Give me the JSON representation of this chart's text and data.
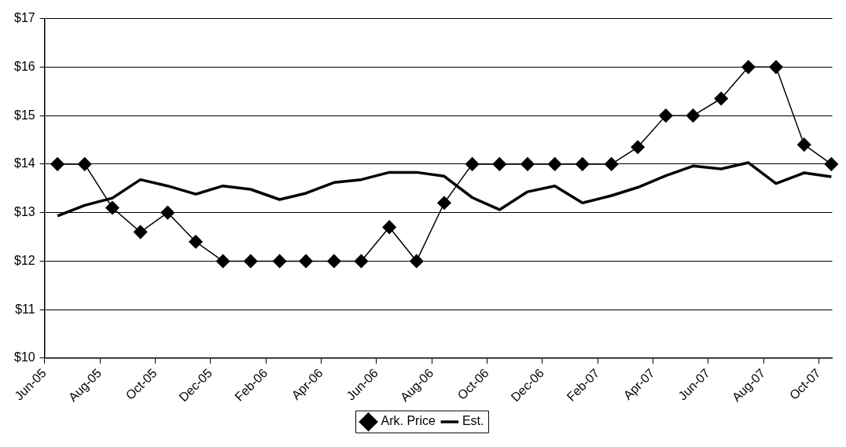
{
  "chart_data": {
    "type": "line",
    "xlim": [
      "2005-06",
      "2007-10-16"
    ],
    "xticks": [
      {
        "value": "2005-06",
        "label": "Jun-05"
      },
      {
        "value": "2005-08",
        "label": "Aug-05"
      },
      {
        "value": "2005-10",
        "label": "Oct-05"
      },
      {
        "value": "2005-12",
        "label": "Dec-05"
      },
      {
        "value": "2006-02",
        "label": "Feb-06"
      },
      {
        "value": "2006-04",
        "label": "Apr-06"
      },
      {
        "value": "2006-06",
        "label": "Jun-06"
      },
      {
        "value": "2006-08",
        "label": "Aug-06"
      },
      {
        "value": "2006-10",
        "label": "Oct-06"
      },
      {
        "value": "2006-12",
        "label": "Dec-06"
      },
      {
        "value": "2007-02",
        "label": "Feb-07"
      },
      {
        "value": "2007-04",
        "label": "Apr-07"
      },
      {
        "value": "2007-06",
        "label": "Jun-07"
      },
      {
        "value": "2007-08",
        "label": "Aug-07"
      },
      {
        "value": "2007-10",
        "label": "Oct-07"
      }
    ],
    "ylim": [
      10,
      17
    ],
    "yticks": [
      {
        "value": 10,
        "label": "$10"
      },
      {
        "value": 11,
        "label": "$11"
      },
      {
        "value": 12,
        "label": "$12"
      },
      {
        "value": 13,
        "label": "$13"
      },
      {
        "value": 14,
        "label": "$14"
      },
      {
        "value": 15,
        "label": "$15"
      },
      {
        "value": 16,
        "label": "$16"
      },
      {
        "value": 17,
        "label": "$17"
      }
    ],
    "x": [
      "2005-06-15",
      "2005-07-15",
      "2005-08-15",
      "2005-09-15",
      "2005-10-15",
      "2005-11-15",
      "2005-12-15",
      "2006-01-15",
      "2006-02-15",
      "2006-03-15",
      "2006-04-15",
      "2006-05-15",
      "2006-06-15",
      "2006-07-15",
      "2006-08-15",
      "2006-09-15",
      "2006-10-15",
      "2006-11-15",
      "2006-12-15",
      "2007-01-15",
      "2007-02-15",
      "2007-03-15",
      "2007-04-15",
      "2007-05-15",
      "2007-06-15",
      "2007-07-15",
      "2007-08-15",
      "2007-09-15",
      "2007-10-15"
    ],
    "series": [
      {
        "name": "Ark. Price",
        "color": "#000000",
        "marker": "diamond",
        "values": [
          14,
          14,
          13.1,
          12.6,
          13,
          12.4,
          12,
          12,
          12,
          12,
          12,
          12,
          12.7,
          12,
          13.2,
          14,
          14,
          14,
          14,
          14,
          14,
          14.35,
          15,
          15,
          15.35,
          16,
          16,
          14.4,
          14
        ]
      },
      {
        "name": "Est.",
        "color": "#000000",
        "marker": "none",
        "values": [
          12.93,
          13.15,
          13.3,
          13.68,
          13.55,
          13.38,
          13.55,
          13.48,
          13.27,
          13.4,
          13.62,
          13.68,
          13.83,
          13.83,
          13.75,
          13.31,
          13.06,
          13.43,
          13.55,
          13.2,
          13.35,
          13.52,
          13.76,
          13.96,
          13.9,
          14.03,
          13.6,
          13.82,
          13.74
        ]
      }
    ],
    "grid": "y",
    "legend": "bottom"
  }
}
